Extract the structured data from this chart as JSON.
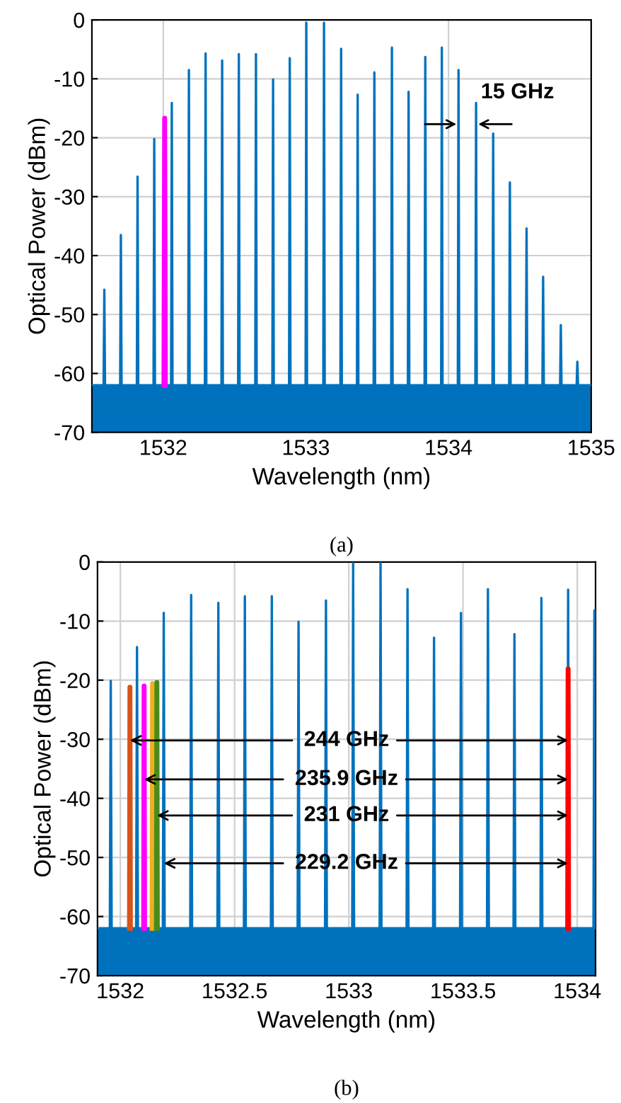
{
  "chart_data": [
    {
      "type": "line",
      "xlabel": "Wavelength (nm)",
      "ylabel": "Optical Power (dBm)",
      "xlim": [
        1531.5,
        1535
      ],
      "xticks": [
        1532,
        1533,
        1534,
        1535
      ],
      "ylim": [
        -70,
        0
      ],
      "yticks": [
        -70,
        -60,
        -50,
        -40,
        -30,
        -20,
        -10,
        0
      ],
      "grid": true,
      "bands": [
        {
          "axis": "y",
          "from": -70,
          "to": -62,
          "color": "#0072bd"
        }
      ],
      "series": [
        {
          "color": "#0072bd",
          "x": [
            1531.5,
            1531.582,
            1531.587,
            1531.592,
            1531.698,
            1531.703,
            1531.708,
            1531.815,
            1531.82,
            1531.825,
            1531.932,
            1531.937,
            1531.942,
            1532.055,
            1532.06,
            1532.065,
            1532.175,
            1532.18,
            1532.185,
            1532.292,
            1532.297,
            1532.302,
            1532.408,
            1532.413,
            1532.418,
            1532.525,
            1532.53,
            1532.535,
            1532.645,
            1532.65,
            1532.655,
            1532.765,
            1532.77,
            1532.775,
            1532.882,
            1532.887,
            1532.892,
            1532.998,
            1533.003,
            1533.008,
            1533.122,
            1533.127,
            1533.132,
            1533.242,
            1533.247,
            1533.252,
            1533.358,
            1533.363,
            1533.368,
            1533.475,
            1533.48,
            1533.485,
            1533.598,
            1533.603,
            1533.608,
            1533.715,
            1533.72,
            1533.725,
            1533.832,
            1533.837,
            1533.842,
            1533.948,
            1533.953,
            1533.958,
            1534.065,
            1534.07,
            1534.075,
            1534.188,
            1534.193,
            1534.198,
            1534.308,
            1534.313,
            1534.318,
            1534.425,
            1534.43,
            1534.435,
            1534.542,
            1534.547,
            1534.552,
            1534.658,
            1534.663,
            1534.668,
            1534.782,
            1534.787,
            1534.792,
            1534.898,
            1534.903,
            1534.908,
            1535
          ],
          "values": [
            -62,
            -62,
            -45.8,
            -62,
            -62,
            -36.5,
            -62,
            -62,
            -26.6,
            -62,
            -62,
            -20.2,
            -62,
            -62,
            -14.1,
            -62,
            -62,
            -8.5,
            -62,
            -62,
            -5.7,
            -62,
            -62,
            -6.9,
            -62,
            -62,
            -5.8,
            -62,
            -62,
            -5.8,
            -62,
            -62,
            -10.1,
            -62,
            -62,
            -6.5,
            -62,
            -62,
            -0.5,
            -62,
            -62,
            -0.5,
            -62,
            -62,
            -4.9,
            -62,
            -62,
            -12.7,
            -62,
            -62,
            -8.9,
            -62,
            -62,
            -4.7,
            -62,
            -62,
            -12.2,
            -62,
            -62,
            -6.3,
            -62,
            -62,
            -4.7,
            -62,
            -62,
            -8.5,
            -62,
            -62,
            -14.1,
            -62,
            -62,
            -19.3,
            -62,
            -62,
            -27.6,
            -62,
            -62,
            -35.4,
            -62,
            -62,
            -43.6,
            -62,
            -62,
            -51.8,
            -62,
            -62,
            -58,
            -62,
            -62
          ]
        },
        {
          "type": "line",
          "color": "#ff00ff",
          "x": [
            1532.005,
            1532.01,
            1532.015
          ],
          "values": [
            -62,
            -16.7,
            -62
          ]
        }
      ],
      "annotations": [
        {
          "text": "15 GHz",
          "x": 1534.07,
          "y": -17.7
        },
        "(a)"
      ]
    },
    {
      "type": "line",
      "xlabel": "Wavelength (nm)",
      "ylabel": "Optical Power (dBm)",
      "xlim": [
        1531.9,
        1534.08
      ],
      "xticks": [
        1532,
        1532.5,
        1533,
        1533.5,
        1534
      ],
      "ylim": [
        -70,
        0
      ],
      "yticks": [
        -70,
        -60,
        -50,
        -40,
        -30,
        -20,
        -10,
        0
      ],
      "grid": true,
      "bands": [
        {
          "axis": "y",
          "from": -70,
          "to": -62,
          "color": "#0072bd"
        }
      ],
      "series": [
        {
          "color": "#0072bd",
          "x": [
            1531.9,
            1531.954,
            1531.958,
            1531.962,
            1532.069,
            1532.073,
            1532.077,
            1532.186,
            1532.19,
            1532.194,
            1532.306,
            1532.31,
            1532.314,
            1532.425,
            1532.429,
            1532.433,
            1532.541,
            1532.545,
            1532.549,
            1532.659,
            1532.663,
            1532.667,
            1532.776,
            1532.78,
            1532.784,
            1532.896,
            1532.9,
            1532.904,
            1533.015,
            1533.019,
            1533.023,
            1533.135,
            1533.139,
            1533.143,
            1533.253,
            1533.257,
            1533.261,
            1533.369,
            1533.373,
            1533.377,
            1533.487,
            1533.491,
            1533.495,
            1533.605,
            1533.609,
            1533.613,
            1533.721,
            1533.725,
            1533.729,
            1533.839,
            1533.843,
            1533.847,
            1533.956,
            1533.96,
            1533.964,
            1534.071,
            1534.075,
            1534.079,
            1534.08
          ],
          "values": [
            -62,
            -62,
            -20.1,
            -62,
            -62,
            -14.4,
            -62,
            -62,
            -8.6,
            -62,
            -62,
            -5.6,
            -62,
            -62,
            -6.9,
            -62,
            -62,
            -5.8,
            -62,
            -62,
            -5.8,
            -62,
            -62,
            -10.1,
            -62,
            -62,
            -6.5,
            -62,
            -62,
            -0.2,
            -62,
            -62,
            -0.2,
            -62,
            -62,
            -4.6,
            -62,
            -62,
            -12.8,
            -62,
            -62,
            -8.6,
            -62,
            -62,
            -4.6,
            -62,
            -62,
            -12.2,
            -62,
            -62,
            -6.1,
            -62,
            -62,
            -4.7,
            -62,
            -62,
            -8.2,
            -62,
            -62
          ]
        },
        {
          "type": "line",
          "color": "#d95319",
          "x": [
            1532.04,
            1532.042,
            1532.044
          ],
          "values": [
            -62,
            -21.2,
            -62
          ]
        },
        {
          "type": "line",
          "color": "#ff00ff",
          "x": [
            1532.102,
            1532.104,
            1532.106
          ],
          "values": [
            -62,
            -21.0,
            -62
          ]
        },
        {
          "type": "line",
          "color": "#edb120",
          "x": [
            1532.139,
            1532.141,
            1532.143
          ],
          "values": [
            -62,
            -20.6,
            -62
          ]
        },
        {
          "type": "line",
          "color": "#4a8a1c",
          "x": [
            1532.158,
            1532.16,
            1532.162
          ],
          "values": [
            -62,
            -20.4,
            -62
          ]
        },
        {
          "type": "line",
          "color": "#ff0000",
          "x": [
            1533.958,
            1533.96,
            1533.962
          ],
          "values": [
            -62,
            -18.1,
            -62
          ]
        }
      ],
      "annotations": [
        {
          "text": "244 GHz",
          "x": 1532.042,
          "y": -30.2
        },
        {
          "text": "235.9 GHz",
          "x": 1532.104,
          "y": -36.8
        },
        {
          "text": "231 GHz",
          "x": 1532.16,
          "y": -42.9
        },
        {
          "text": "229.2 GHz",
          "x": 1532.19,
          "y": -51.0
        },
        "(b)"
      ]
    }
  ]
}
